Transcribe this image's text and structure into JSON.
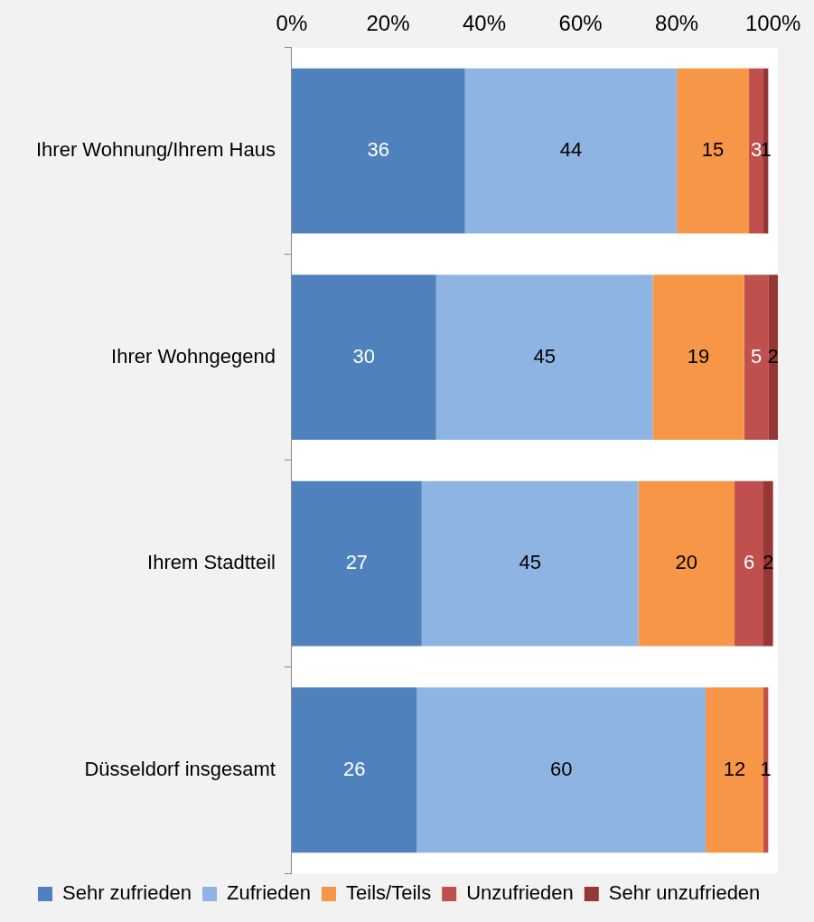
{
  "chart_data": {
    "type": "bar",
    "orientation": "horizontal",
    "stacked": true,
    "data_labels": true,
    "legend": "bottom",
    "grid": false,
    "categories": [
      "Ihrer Wohnung/Ihrem Haus",
      "Ihrer Wohngegend",
      "Ihrem Stadtteil",
      "Düsseldorf insgesamt"
    ],
    "xlim": [
      0,
      101
    ],
    "xticks": [
      {
        "value": 0,
        "label": "0%"
      },
      {
        "value": 20,
        "label": "20%"
      },
      {
        "value": 40,
        "label": "40%"
      },
      {
        "value": 60,
        "label": "60%"
      },
      {
        "value": 80,
        "label": "80%"
      },
      {
        "value": 100,
        "label": "100%"
      }
    ],
    "series": [
      {
        "name": "Sehr zufrieden",
        "color": "#4f81bd",
        "values": [
          36,
          30,
          27,
          26
        ]
      },
      {
        "name": "Zufrieden",
        "color": "#8eb4e3",
        "values": [
          44,
          45,
          45,
          60
        ]
      },
      {
        "name": "Teils/Teils",
        "color": "#f79646",
        "values": [
          15,
          19,
          20,
          12
        ]
      },
      {
        "name": "Unzufrieden",
        "color": "#c0504d",
        "values": [
          3,
          5,
          6,
          1
        ]
      },
      {
        "name": "Sehr unzufrieden",
        "color": "#953735",
        "values": [
          1,
          2,
          2,
          null
        ]
      }
    ]
  }
}
